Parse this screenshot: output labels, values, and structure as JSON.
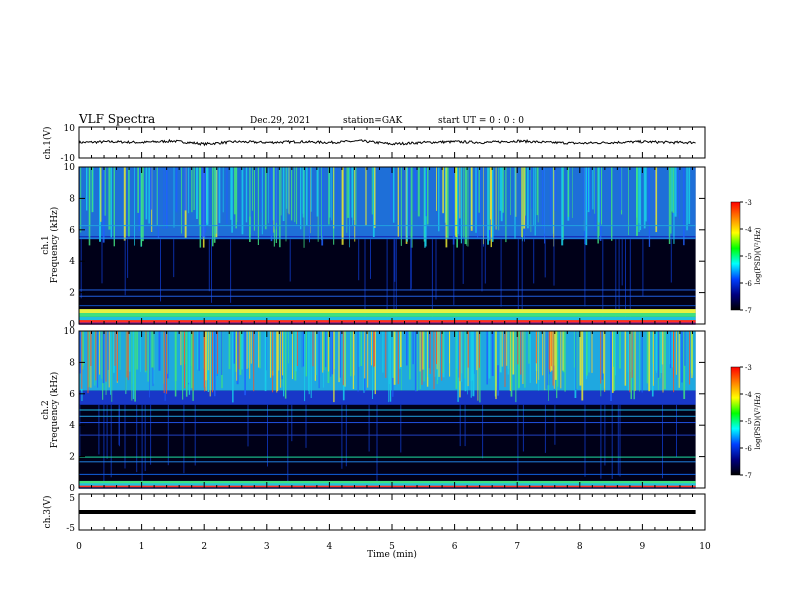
{
  "header": {
    "title": "VLF Spectra",
    "date": "Dec.29, 2021",
    "station": "station=GAK",
    "start": "start  UT =   0 : 0  : 0"
  },
  "chart_data": [
    {
      "type": "line",
      "name": "ch1-waveform",
      "ylabel": "ch.1(V)",
      "ylim": [
        -10,
        10
      ],
      "yticks": [
        "10",
        "-10"
      ],
      "x": [
        0,
        0.5,
        1,
        1.5,
        2,
        2.5,
        3,
        3.5,
        4,
        4.5,
        5,
        5.5,
        6,
        6.5,
        7,
        7.5,
        8,
        8.5,
        9,
        9.5,
        9.85
      ],
      "values": [
        0,
        0.5,
        0,
        1,
        -1,
        0.5,
        0,
        0.5,
        0,
        1,
        -1,
        0,
        0.5,
        0,
        1,
        0,
        -0.5,
        0,
        0.5,
        0,
        0
      ]
    },
    {
      "type": "heatmap",
      "name": "ch1-spectrogram",
      "ylabel": "ch.1\nFrequency (kHz)",
      "ylim": [
        0,
        10
      ],
      "yticks": [
        "0",
        "2",
        "4",
        "6",
        "8",
        "10"
      ],
      "colorbar": {
        "ticks": [
          "-3",
          "-4",
          "-5",
          "-6",
          "-7"
        ],
        "label": "log(PSD)(V²/Hz)",
        "range": [
          -7,
          -3
        ]
      }
    },
    {
      "type": "heatmap",
      "name": "ch2-spectrogram",
      "ylabel": "ch.2\nFrequency (kHz)",
      "ylim": [
        0,
        10
      ],
      "yticks": [
        "0",
        "2",
        "4",
        "6",
        "8",
        "10"
      ],
      "colorbar": {
        "ticks": [
          "-3",
          "-4",
          "-5",
          "-6",
          "-7"
        ],
        "label": "log(PSD)(V²/Hz)",
        "range": [
          -7,
          -3
        ]
      }
    },
    {
      "type": "line",
      "name": "ch3-waveform",
      "ylabel": "ch.3(V)",
      "ylim": [
        -5,
        5
      ],
      "yticks": [
        "5",
        "-5"
      ],
      "x": [
        0,
        9.85
      ],
      "values": [
        0,
        0
      ]
    }
  ],
  "xaxis": {
    "label": "Time  (min)",
    "xlim": [
      0,
      10
    ],
    "ticks": [
      "0",
      "1",
      "2",
      "3",
      "4",
      "5",
      "6",
      "7",
      "8",
      "9",
      "10"
    ]
  }
}
